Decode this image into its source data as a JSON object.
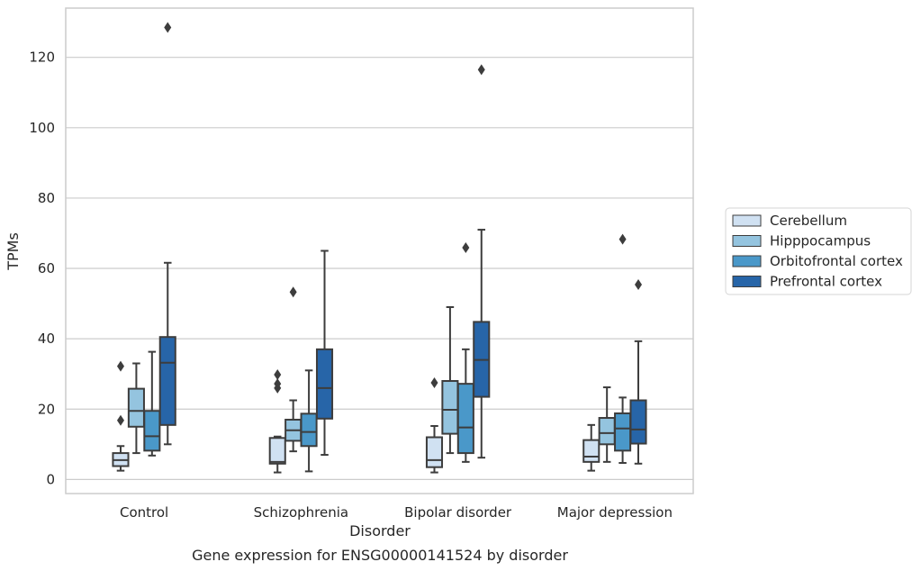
{
  "chart_data": {
    "type": "box",
    "title": "",
    "caption": "Gene expression for ENSG00000141524 by disorder",
    "xlabel": "Disorder",
    "ylabel": "TPMs",
    "ylim": [
      -4,
      134
    ],
    "yticks": [
      0,
      20,
      40,
      60,
      80,
      100,
      120
    ],
    "grid": "horizontal",
    "legend_position": "right",
    "categories": [
      "Control",
      "Schizophrenia",
      "Bipolar disorder",
      "Major depression"
    ],
    "series": [
      {
        "name": "Cerebellum",
        "color": "#d0e1f2",
        "boxes": [
          {
            "whislo": 2.5,
            "q1": 3.8,
            "med": 5.5,
            "q3": 7.5,
            "whishi": 9.5,
            "fliers": [
              16.8,
              32.2
            ]
          },
          {
            "whislo": 2.0,
            "q1": 4.5,
            "med": 5.0,
            "q3": 11.8,
            "whishi": 12.2,
            "fliers": [
              26.0,
              27.2,
              29.8
            ]
          },
          {
            "whislo": 2.0,
            "q1": 3.5,
            "med": 5.5,
            "q3": 12.0,
            "whishi": 15.2,
            "fliers": [
              27.5
            ]
          },
          {
            "whislo": 2.5,
            "q1": 5.0,
            "med": 6.5,
            "q3": 11.2,
            "whishi": 15.5,
            "fliers": []
          }
        ]
      },
      {
        "name": "Hipppocampus",
        "color": "#94c4df",
        "boxes": [
          {
            "whislo": 7.5,
            "q1": 15.0,
            "med": 19.5,
            "q3": 25.8,
            "whishi": 33.0,
            "fliers": []
          },
          {
            "whislo": 8.0,
            "q1": 11.0,
            "med": 14.0,
            "q3": 17.0,
            "whishi": 22.5,
            "fliers": [
              53.3
            ]
          },
          {
            "whislo": 7.5,
            "q1": 13.0,
            "med": 19.8,
            "q3": 28.0,
            "whishi": 49.0,
            "fliers": []
          },
          {
            "whislo": 5.0,
            "q1": 10.0,
            "med": 13.2,
            "q3": 17.5,
            "whishi": 26.2,
            "fliers": []
          }
        ]
      },
      {
        "name": "Orbitofrontal cortex",
        "color": "#4a98c9",
        "boxes": [
          {
            "whislo": 6.8,
            "q1": 8.2,
            "med": 12.3,
            "q3": 19.5,
            "whishi": 36.3,
            "fliers": []
          },
          {
            "whislo": 2.3,
            "q1": 9.5,
            "med": 13.5,
            "q3": 18.7,
            "whishi": 31.0,
            "fliers": []
          },
          {
            "whislo": 5.0,
            "q1": 7.5,
            "med": 14.8,
            "q3": 27.2,
            "whishi": 37.0,
            "fliers": [
              65.9
            ]
          },
          {
            "whislo": 4.7,
            "q1": 8.2,
            "med": 14.5,
            "q3": 18.8,
            "whishi": 23.3,
            "fliers": [
              68.3
            ]
          }
        ]
      },
      {
        "name": "Prefrontal cortex",
        "color": "#2765a8",
        "boxes": [
          {
            "whislo": 10.0,
            "q1": 15.5,
            "med": 33.2,
            "q3": 40.5,
            "whishi": 61.6,
            "fliers": [
              128.5
            ]
          },
          {
            "whislo": 7.0,
            "q1": 17.3,
            "med": 26.0,
            "q3": 37.0,
            "whishi": 65.0,
            "fliers": []
          },
          {
            "whislo": 6.2,
            "q1": 23.5,
            "med": 34.0,
            "q3": 44.8,
            "whishi": 71.0,
            "fliers": [
              116.5
            ]
          },
          {
            "whislo": 4.5,
            "q1": 10.2,
            "med": 14.2,
            "q3": 22.5,
            "whishi": 39.3,
            "fliers": [
              55.4
            ]
          }
        ]
      }
    ]
  }
}
